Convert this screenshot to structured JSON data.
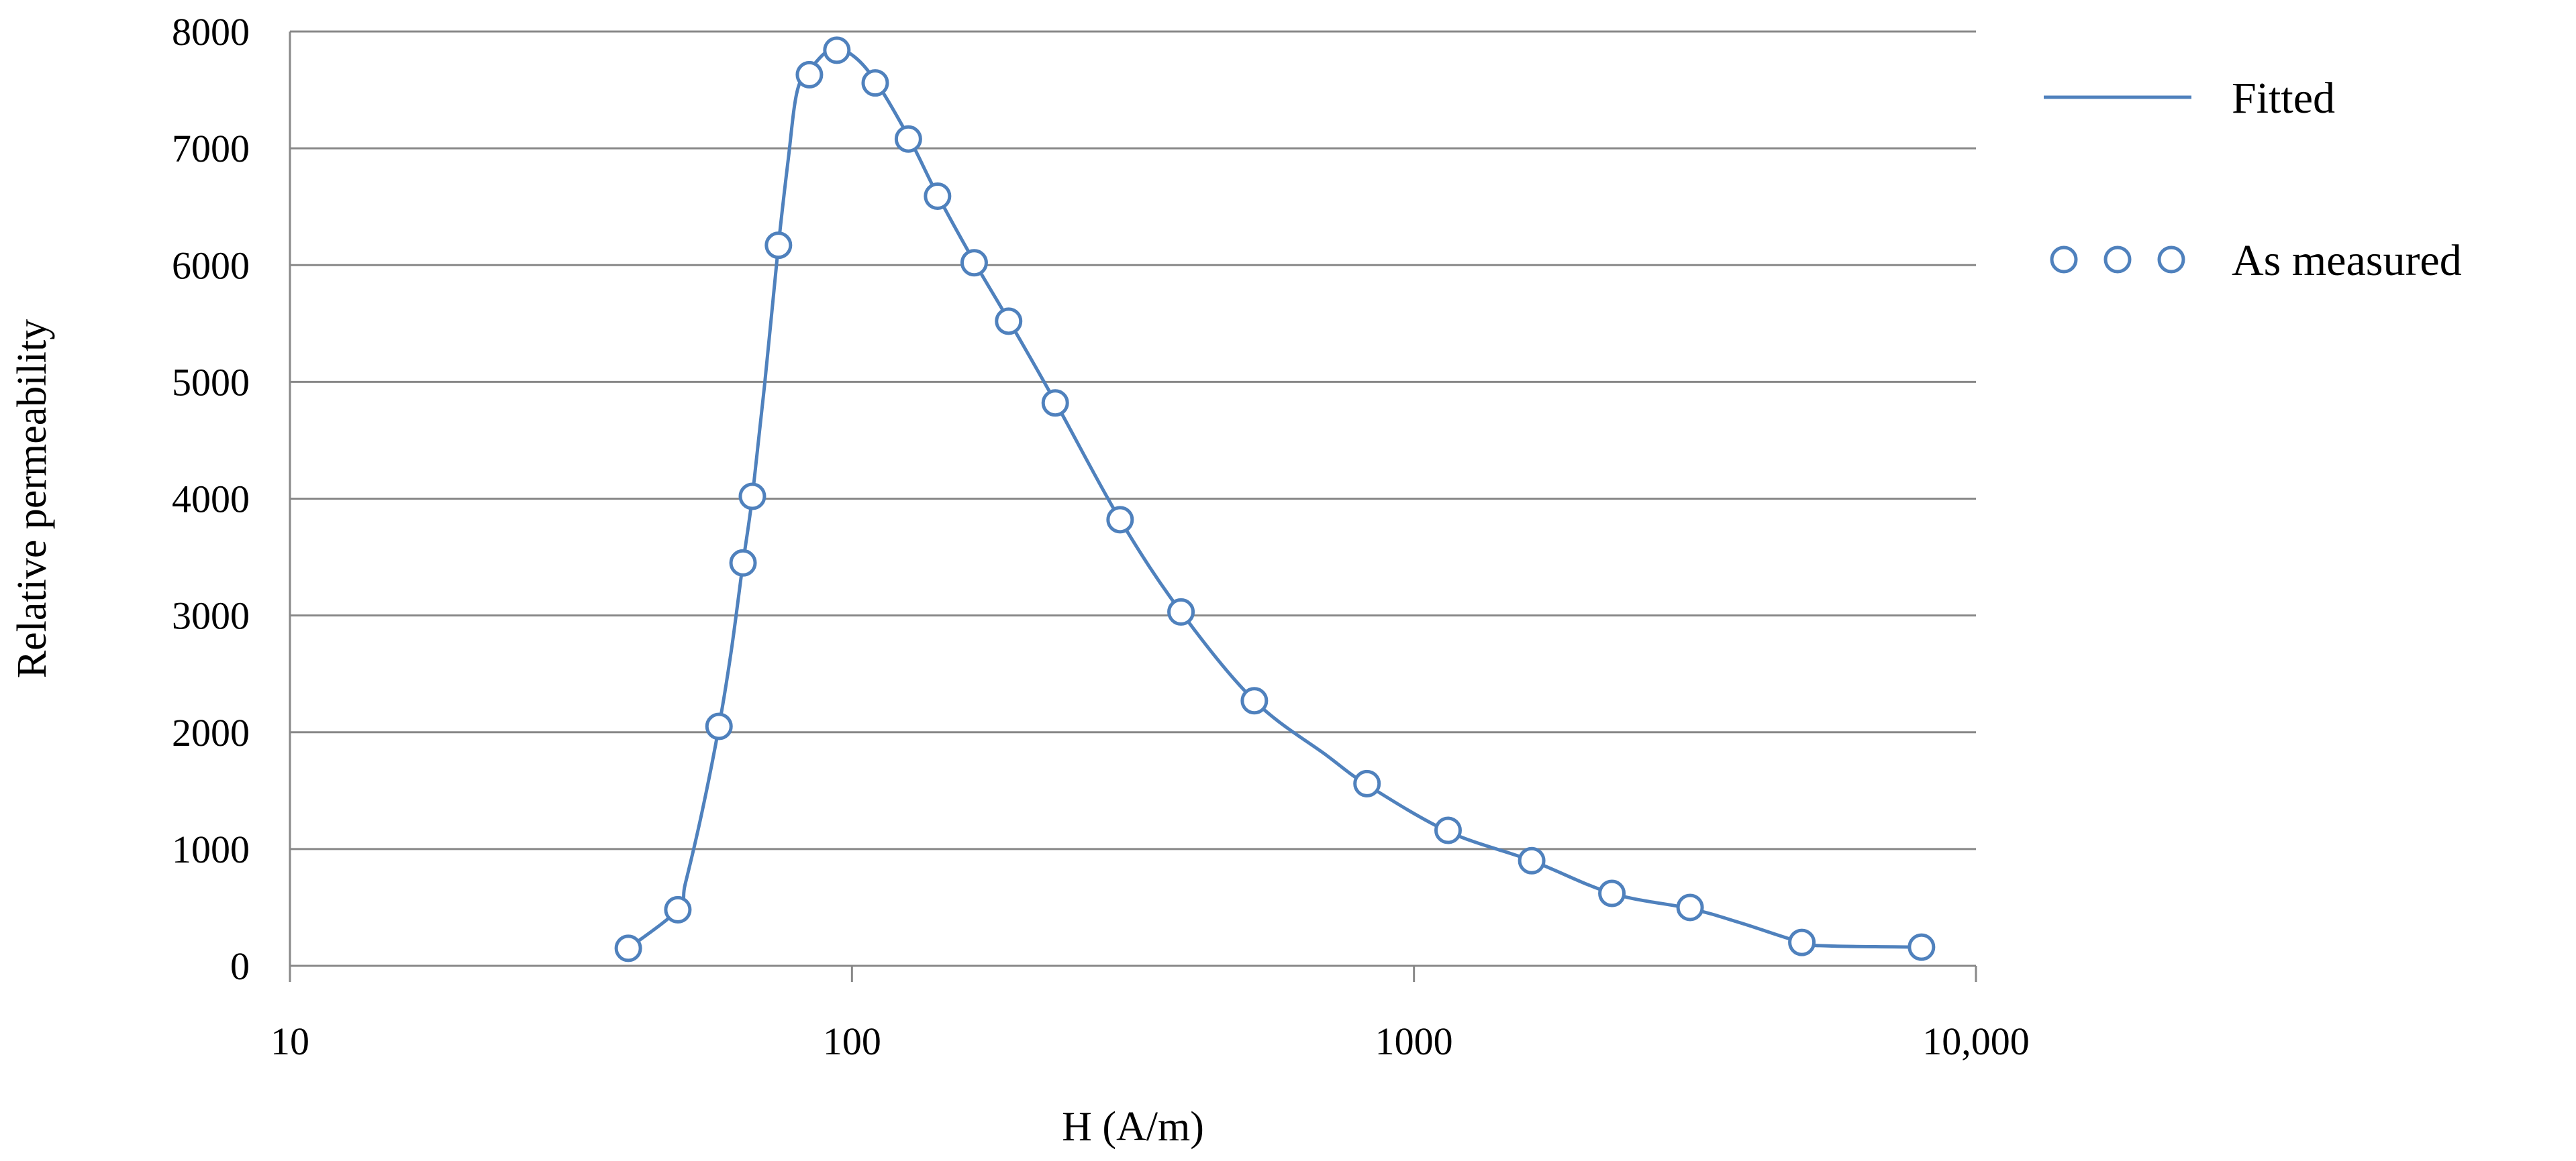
{
  "chart_data": {
    "type": "line",
    "title": "",
    "xlabel": "H (A/m)",
    "ylabel": "Relative permeability",
    "xscale": "log",
    "xlim": [
      10,
      10000
    ],
    "ylim": [
      0,
      8000
    ],
    "x_ticks": [
      {
        "value": 10,
        "label": "10"
      },
      {
        "value": 100,
        "label": "100"
      },
      {
        "value": 1000,
        "label": "1000"
      },
      {
        "value": 10000,
        "label": "10,000"
      }
    ],
    "y_ticks": [
      {
        "value": 0,
        "label": "0"
      },
      {
        "value": 1000,
        "label": "1000"
      },
      {
        "value": 2000,
        "label": "2000"
      },
      {
        "value": 3000,
        "label": "3000"
      },
      {
        "value": 4000,
        "label": "4000"
      },
      {
        "value": 5000,
        "label": "5000"
      },
      {
        "value": 6000,
        "label": "6000"
      },
      {
        "value": 7000,
        "label": "7000"
      },
      {
        "value": 8000,
        "label": "8000"
      }
    ],
    "grid": "horizontal",
    "legend_position": "right",
    "series": [
      {
        "name": "Fitted",
        "style": "line",
        "color": "#4f81bd",
        "points": [
          [
            40,
            150
          ],
          [
            49,
            480
          ],
          [
            50.5,
            700
          ],
          [
            54,
            1300
          ],
          [
            58,
            2050
          ],
          [
            61,
            2700
          ],
          [
            64,
            3450
          ],
          [
            66.5,
            4020
          ],
          [
            70,
            5000
          ],
          [
            74,
            6170
          ],
          [
            77,
            6900
          ],
          [
            80,
            7500
          ],
          [
            85,
            7700
          ],
          [
            92,
            7850
          ],
          [
            100,
            7800
          ],
          [
            110,
            7580
          ],
          [
            126,
            7100
          ],
          [
            142,
            6600
          ],
          [
            165,
            6030
          ],
          [
            190,
            5530
          ],
          [
            230,
            4830
          ],
          [
            300,
            3820
          ],
          [
            385,
            3030
          ],
          [
            520,
            2270
          ],
          [
            700,
            1800
          ],
          [
            825,
            1550
          ],
          [
            1150,
            1150
          ],
          [
            1620,
            900
          ],
          [
            2250,
            620
          ],
          [
            3100,
            490
          ],
          [
            3800,
            370
          ],
          [
            4900,
            200
          ],
          [
            5500,
            170
          ],
          [
            8000,
            160
          ]
        ]
      },
      {
        "name": "As measured",
        "style": "markers",
        "color": "#4f81bd",
        "points": [
          [
            40,
            150
          ],
          [
            49,
            480
          ],
          [
            58,
            2050
          ],
          [
            64,
            3450
          ],
          [
            66.5,
            4020
          ],
          [
            74,
            6170
          ],
          [
            84,
            7630
          ],
          [
            94,
            7840
          ],
          [
            110,
            7560
          ],
          [
            126,
            7080
          ],
          [
            142,
            6590
          ],
          [
            165,
            6020
          ],
          [
            190,
            5520
          ],
          [
            230,
            4820
          ],
          [
            300,
            3820
          ],
          [
            385,
            3030
          ],
          [
            520,
            2270
          ],
          [
            825,
            1560
          ],
          [
            1150,
            1160
          ],
          [
            1620,
            900
          ],
          [
            2250,
            620
          ],
          [
            3100,
            500
          ],
          [
            4900,
            200
          ],
          [
            8000,
            160
          ]
        ]
      }
    ]
  }
}
